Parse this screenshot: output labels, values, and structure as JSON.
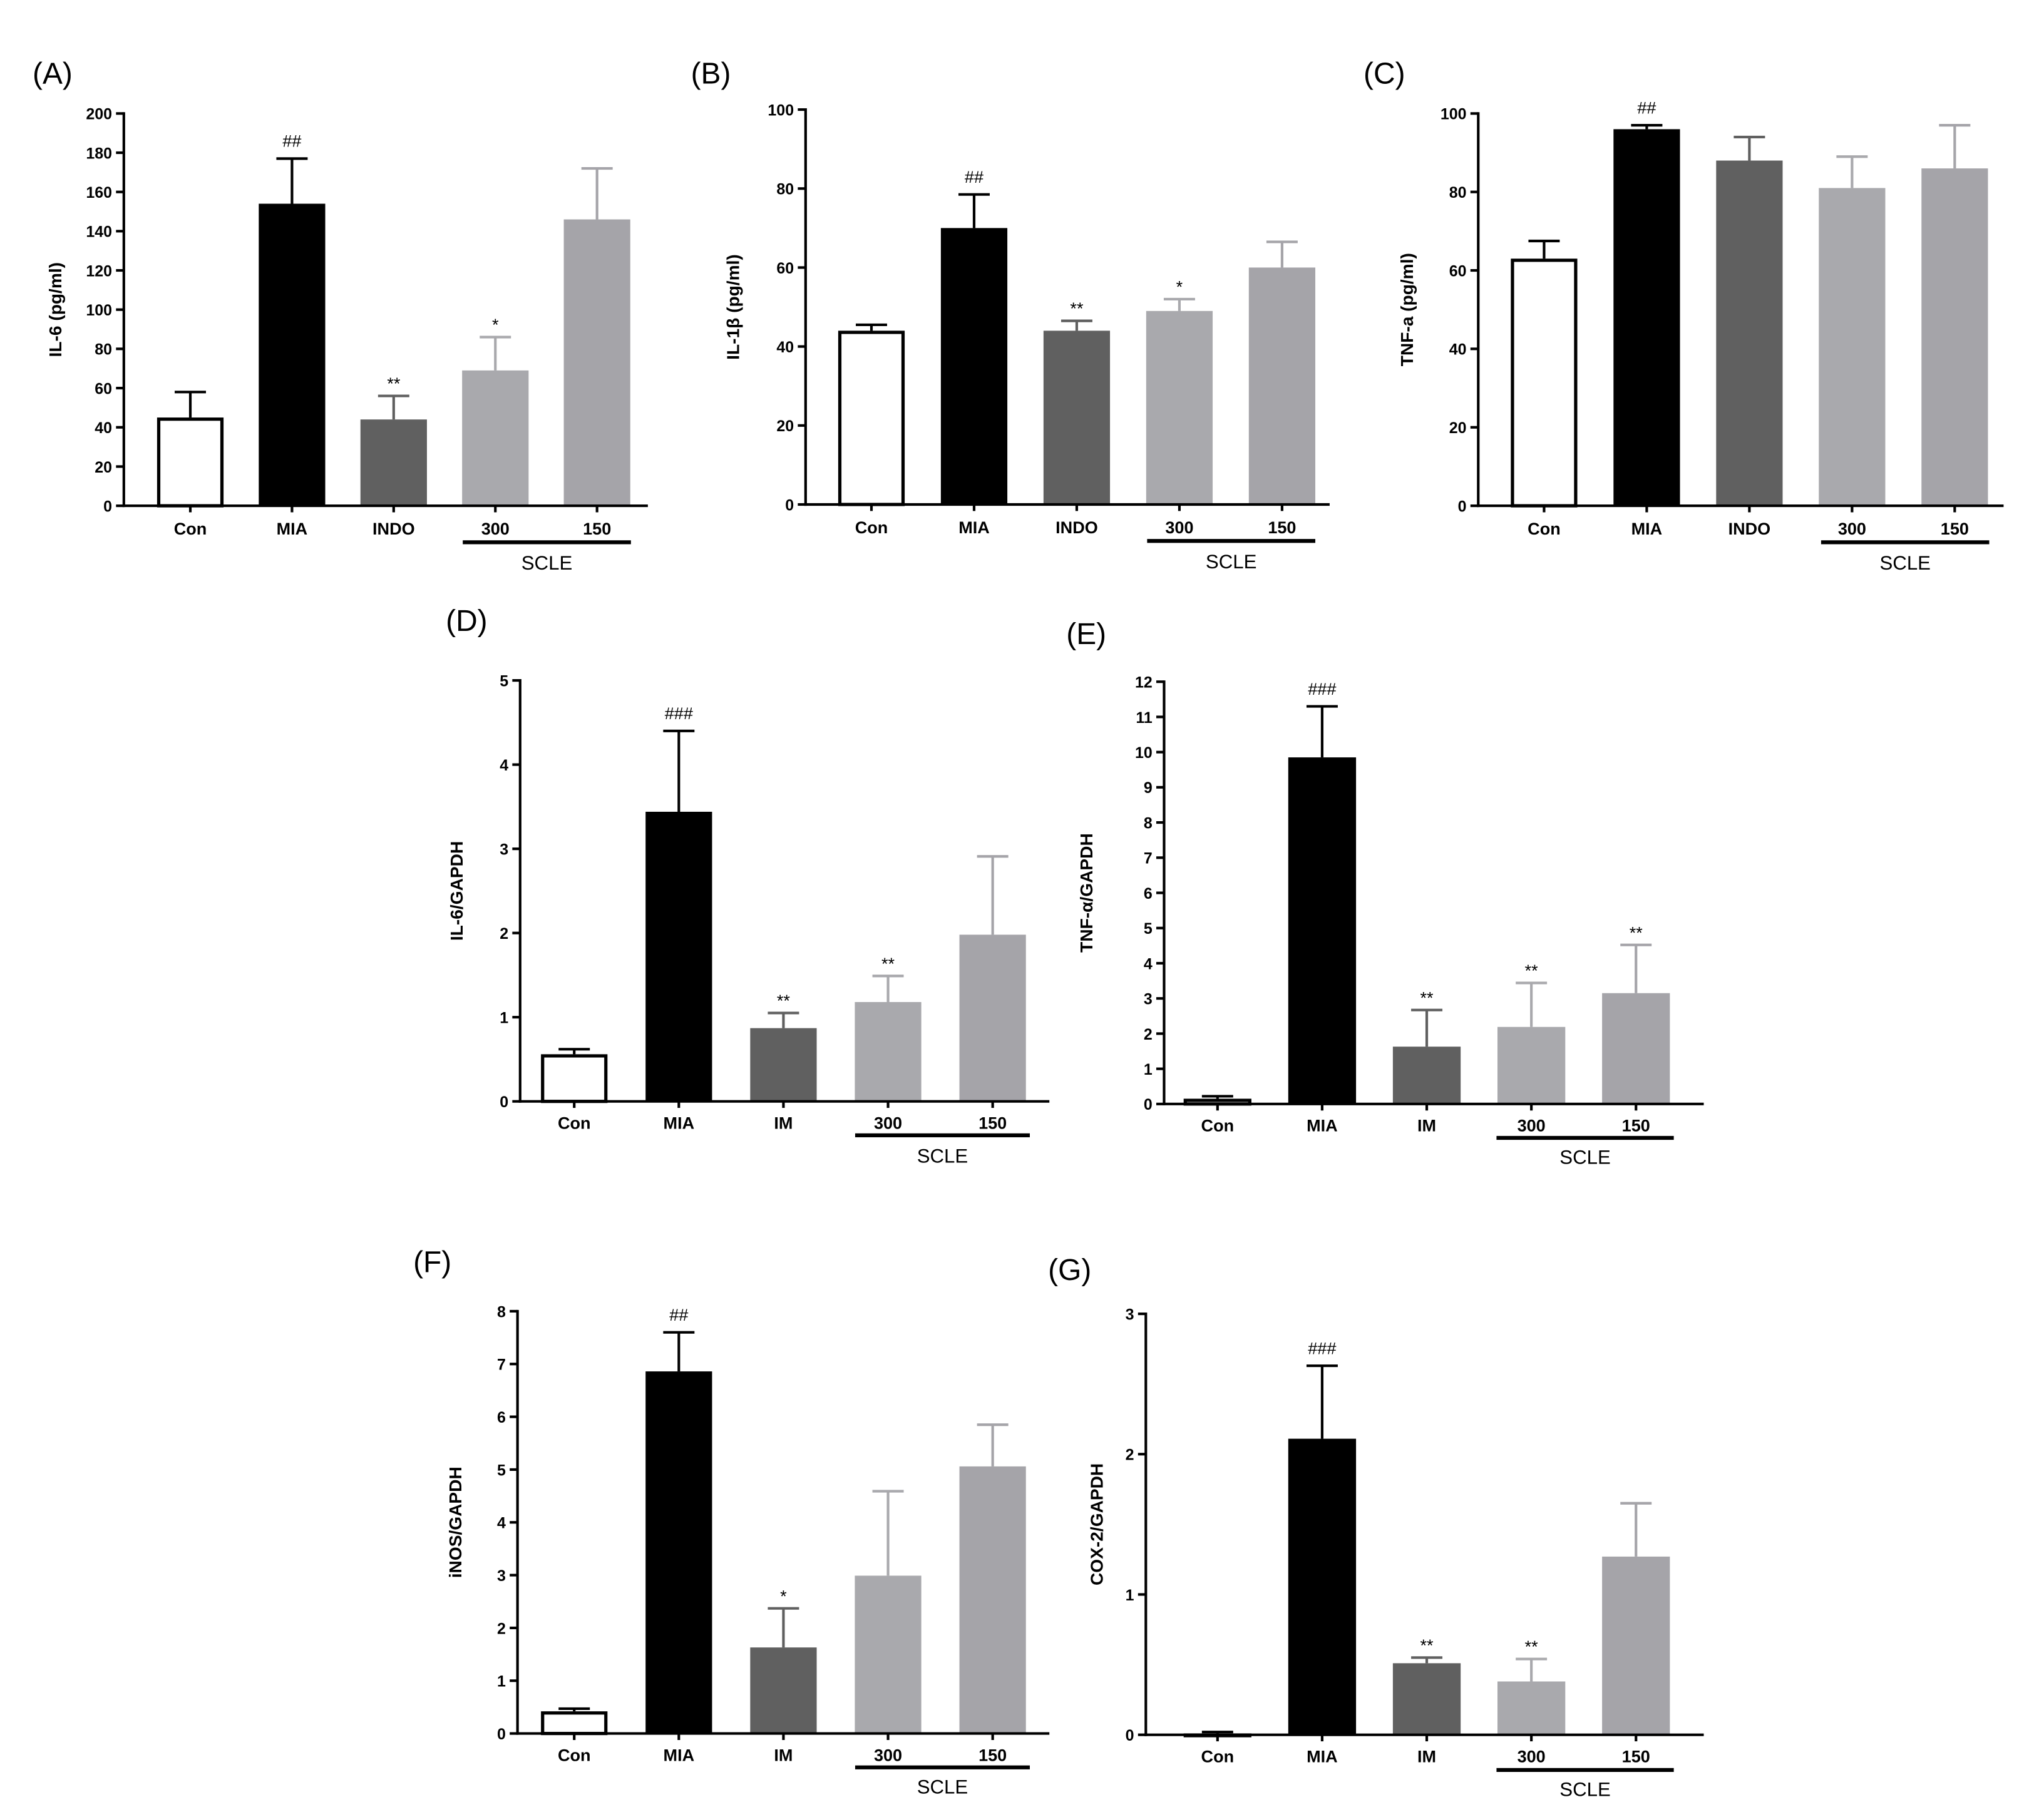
{
  "chart_data": [
    {
      "panel": "(A)",
      "type": "bar",
      "categories": [
        "Con",
        "MIA",
        "INDO",
        "300",
        "150"
      ],
      "values": [
        45,
        154,
        44,
        69,
        146
      ],
      "errors": [
        13,
        23,
        12,
        17,
        26
      ],
      "annotations": [
        "",
        "##",
        "**",
        "*",
        ""
      ],
      "group_label": "SCLE",
      "ylabel": "IL-6 (pg/ml)",
      "xlabel": "",
      "ylim": [
        0,
        200
      ],
      "yticks": [
        0,
        20,
        40,
        60,
        80,
        100,
        120,
        140,
        160,
        180,
        200
      ],
      "bar_colors": [
        "#ffffff",
        "#000000",
        "#606060",
        "#a9a9ad",
        "#a5a4a9"
      ]
    },
    {
      "panel": "(B)",
      "type": "bar",
      "categories": [
        "Con",
        "MIA",
        "INDO",
        "300",
        "150"
      ],
      "values": [
        44,
        70,
        44,
        49,
        60
      ],
      "errors": [
        1.5,
        8.5,
        2.5,
        3,
        6.5
      ],
      "annotations": [
        "",
        "##",
        "**",
        "*",
        ""
      ],
      "group_label": "SCLE",
      "ylabel": "IL-1β (pg/ml)",
      "xlabel": "",
      "ylim": [
        0,
        100
      ],
      "yticks": [
        0,
        20,
        40,
        60,
        80,
        100
      ],
      "bar_colors": [
        "#ffffff",
        "#000000",
        "#606060",
        "#a9a9ad",
        "#a5a4a9"
      ]
    },
    {
      "panel": "(C)",
      "type": "bar",
      "categories": [
        "Con",
        "MIA",
        "INDO",
        "300",
        "150"
      ],
      "values": [
        63,
        96,
        88,
        81,
        86
      ],
      "errors": [
        4.5,
        1,
        6,
        8,
        11
      ],
      "annotations": [
        "",
        "##",
        "",
        "",
        ""
      ],
      "group_label": "SCLE",
      "ylabel": "TNF-a (pg/ml)",
      "xlabel": "",
      "ylim": [
        0,
        100
      ],
      "yticks": [
        0,
        20,
        40,
        60,
        80,
        100
      ],
      "bar_colors": [
        "#ffffff",
        "#000000",
        "#606060",
        "#a9a9ad",
        "#a5a4a9"
      ]
    },
    {
      "panel": "(D)",
      "type": "bar",
      "categories": [
        "Con",
        "MIA",
        "IM",
        "300",
        "150"
      ],
      "values": [
        0.56,
        3.44,
        0.87,
        1.18,
        1.98
      ],
      "errors": [
        0.06,
        0.96,
        0.18,
        0.31,
        0.93
      ],
      "annotations": [
        "",
        "###",
        "**",
        "**",
        ""
      ],
      "group_label": "SCLE",
      "ylabel": "IL-6/GAPDH",
      "xlabel": "",
      "ylim": [
        0,
        5
      ],
      "yticks": [
        0,
        1,
        2,
        3,
        4,
        5
      ],
      "bar_colors": [
        "#ffffff",
        "#000000",
        "#606060",
        "#a9a9ad",
        "#a5a4a9"
      ]
    },
    {
      "panel": "(E)",
      "type": "bar",
      "categories": [
        "Con",
        "MIA",
        "IM",
        "300",
        "150"
      ],
      "values": [
        0.15,
        9.85,
        1.63,
        2.19,
        3.15
      ],
      "errors": [
        0.07,
        1.45,
        1.04,
        1.25,
        1.37
      ],
      "annotations": [
        "",
        "###",
        "**",
        "**",
        "**"
      ],
      "group_label": "SCLE",
      "ylabel": "TNF-α/GAPDH",
      "xlabel": "",
      "ylim": [
        0,
        12
      ],
      "yticks": [
        0,
        1,
        2,
        3,
        4,
        5,
        6,
        7,
        8,
        9,
        10,
        11,
        12
      ],
      "bar_colors": [
        "#ffffff",
        "#000000",
        "#606060",
        "#a9a9ad",
        "#a5a4a9"
      ]
    },
    {
      "panel": "(F)",
      "type": "bar",
      "categories": [
        "Con",
        "MIA",
        "IM",
        "300",
        "150"
      ],
      "values": [
        0.42,
        6.86,
        1.63,
        2.99,
        5.06
      ],
      "errors": [
        0.05,
        0.74,
        0.74,
        1.6,
        0.79
      ],
      "annotations": [
        "",
        "##",
        "*",
        "",
        ""
      ],
      "group_label": "SCLE",
      "ylabel": "iNOS/GAPDH",
      "xlabel": "",
      "ylim": [
        0,
        8
      ],
      "yticks": [
        0,
        1,
        2,
        3,
        4,
        5,
        6,
        7,
        8
      ],
      "bar_colors": [
        "#ffffff",
        "#000000",
        "#606060",
        "#a9a9ad",
        "#a5a4a9"
      ]
    },
    {
      "panel": "(G)",
      "type": "bar",
      "categories": [
        "Con",
        "MIA",
        "IM",
        "300",
        "150"
      ],
      "values": [
        0.01,
        2.11,
        0.51,
        0.38,
        1.27
      ],
      "errors": [
        0.01,
        0.52,
        0.04,
        0.16,
        0.38
      ],
      "annotations": [
        "",
        "###",
        "**",
        "**",
        ""
      ],
      "group_label": "SCLE",
      "ylabel": "COX-2/GAPDH",
      "xlabel": "",
      "ylim": [
        0,
        3
      ],
      "yticks": [
        0,
        1,
        2,
        3
      ],
      "bar_colors": [
        "#ffffff",
        "#000000",
        "#606060",
        "#a9a9ad",
        "#a5a4a9"
      ]
    }
  ]
}
